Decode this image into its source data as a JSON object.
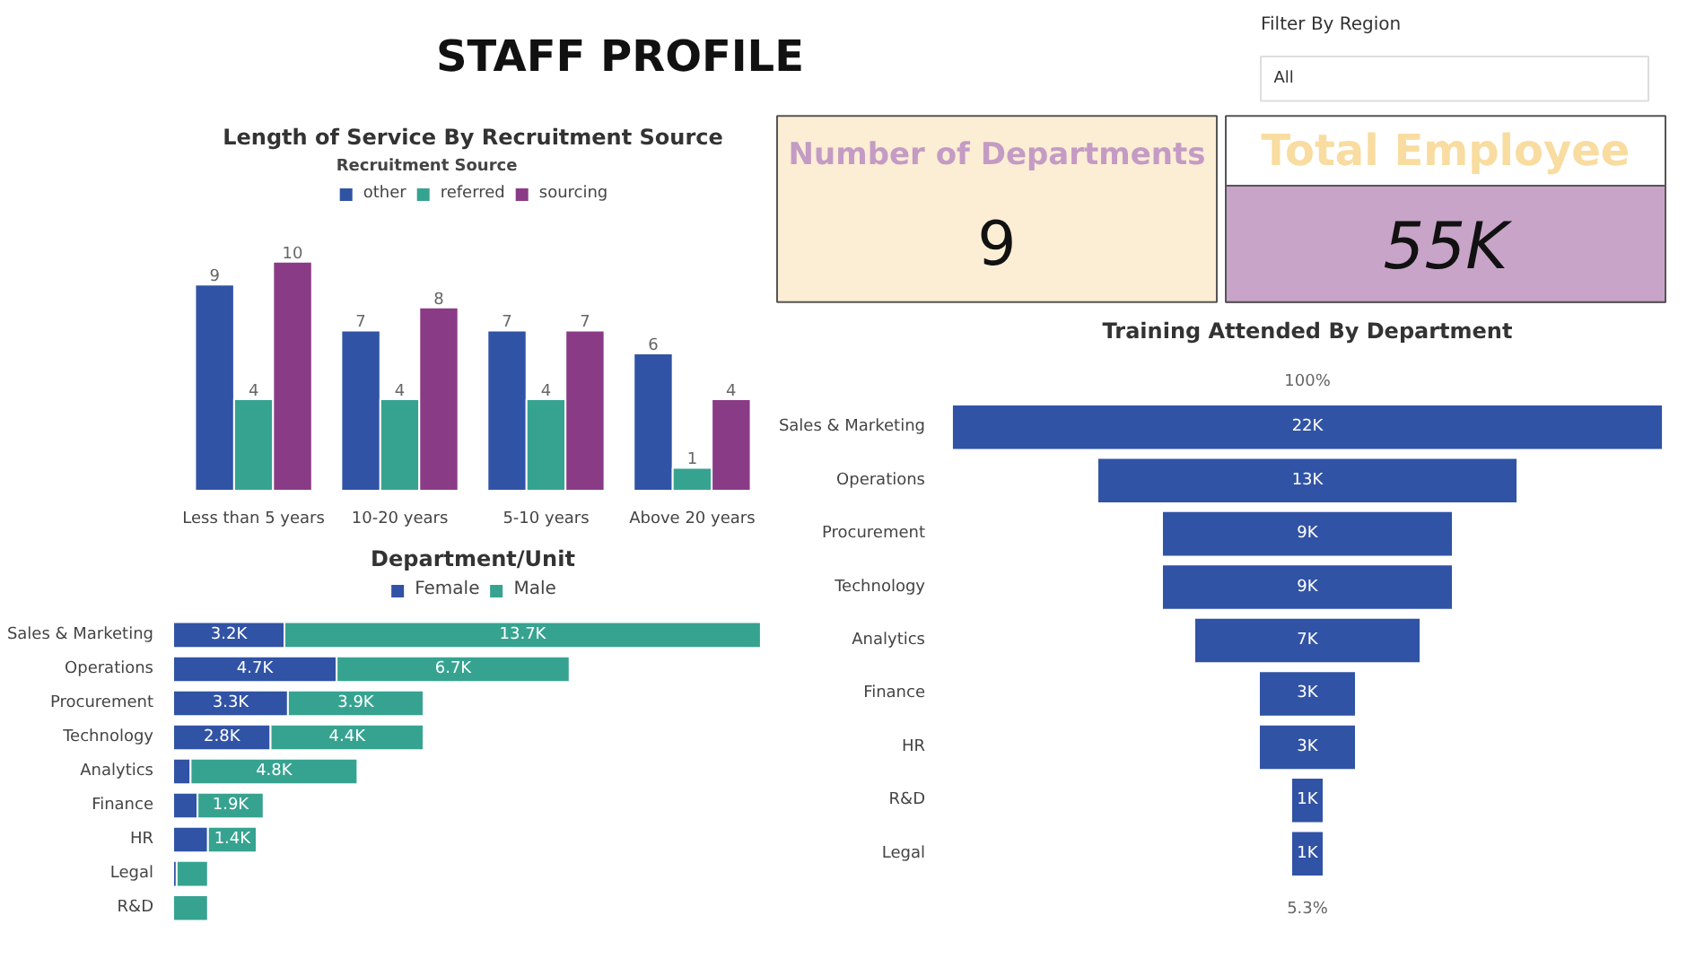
{
  "chart_data": [
    {
      "type": "other",
      "title": "STAFF PROFILE"
    },
    {
      "type": "other",
      "title": "Filter By Region",
      "annotations": [
        "All"
      ]
    },
    {
      "type": "other",
      "title": "Number of Departments",
      "annotations": [
        "9"
      ]
    },
    {
      "type": "other",
      "title": "Total Employee",
      "annotations": [
        "55K"
      ]
    },
    {
      "type": "bar",
      "title": "Length of Service By Recruitment Source",
      "legend_title": "Recruitment Source",
      "legend": "top",
      "data_labels": true,
      "categories": [
        "Less than 5 years",
        "10-20 years",
        "5-10 years",
        "Above 20 years"
      ],
      "series": [
        {
          "name": "other",
          "color": "#3153a5",
          "values": [
            9,
            7,
            7,
            6
          ]
        },
        {
          "name": "referred",
          "color": "#36a390",
          "values": [
            4,
            4,
            4,
            1
          ]
        },
        {
          "name": "sourcing",
          "color": "#8a3b86",
          "values": [
            10,
            8,
            7,
            4
          ]
        }
      ]
    },
    {
      "type": "bar",
      "title": "Department/Unit",
      "orientation": "horizontal",
      "stacked": true,
      "legend": "top",
      "categories": [
        "Sales & Marketing",
        "Operations",
        "Procurement",
        "Technology",
        "Analytics",
        "Finance",
        "HR",
        "Legal",
        "R&D"
      ],
      "series": [
        {
          "name": "Female",
          "color": "#3153a5",
          "values": [
            3.2,
            4.7,
            3.3,
            2.8,
            0.5,
            0.7,
            1.0,
            0.1,
            null
          ],
          "value_labels": [
            "3.2K",
            "4.7K",
            "3.3K",
            "2.8K",
            null,
            null,
            null,
            null,
            null
          ]
        },
        {
          "name": "Male",
          "color": "#36a390",
          "values": [
            13.7,
            6.7,
            3.9,
            4.4,
            4.8,
            1.9,
            1.4,
            0.9,
            1.0
          ],
          "value_labels": [
            "13.7K",
            "6.7K",
            "3.9K",
            "4.4K",
            "4.8K",
            "1.9K",
            "1.4K",
            null,
            null
          ]
        }
      ]
    },
    {
      "type": "other",
      "title": "Training Attended By Department",
      "color": "#3153a5",
      "categories": [
        "Sales & Marketing",
        "Operations",
        "Procurement",
        "Technology",
        "Analytics",
        "Finance",
        "HR",
        "R&D",
        "Legal"
      ],
      "values": [
        22,
        13,
        9,
        9,
        7,
        3,
        3,
        1,
        1
      ],
      "value_labels": [
        "22K",
        "13K",
        "9K",
        "9K",
        "7K",
        "3K",
        "3K",
        "1K",
        "1K"
      ],
      "annotations": [
        "100%",
        "5.3%"
      ]
    }
  ]
}
